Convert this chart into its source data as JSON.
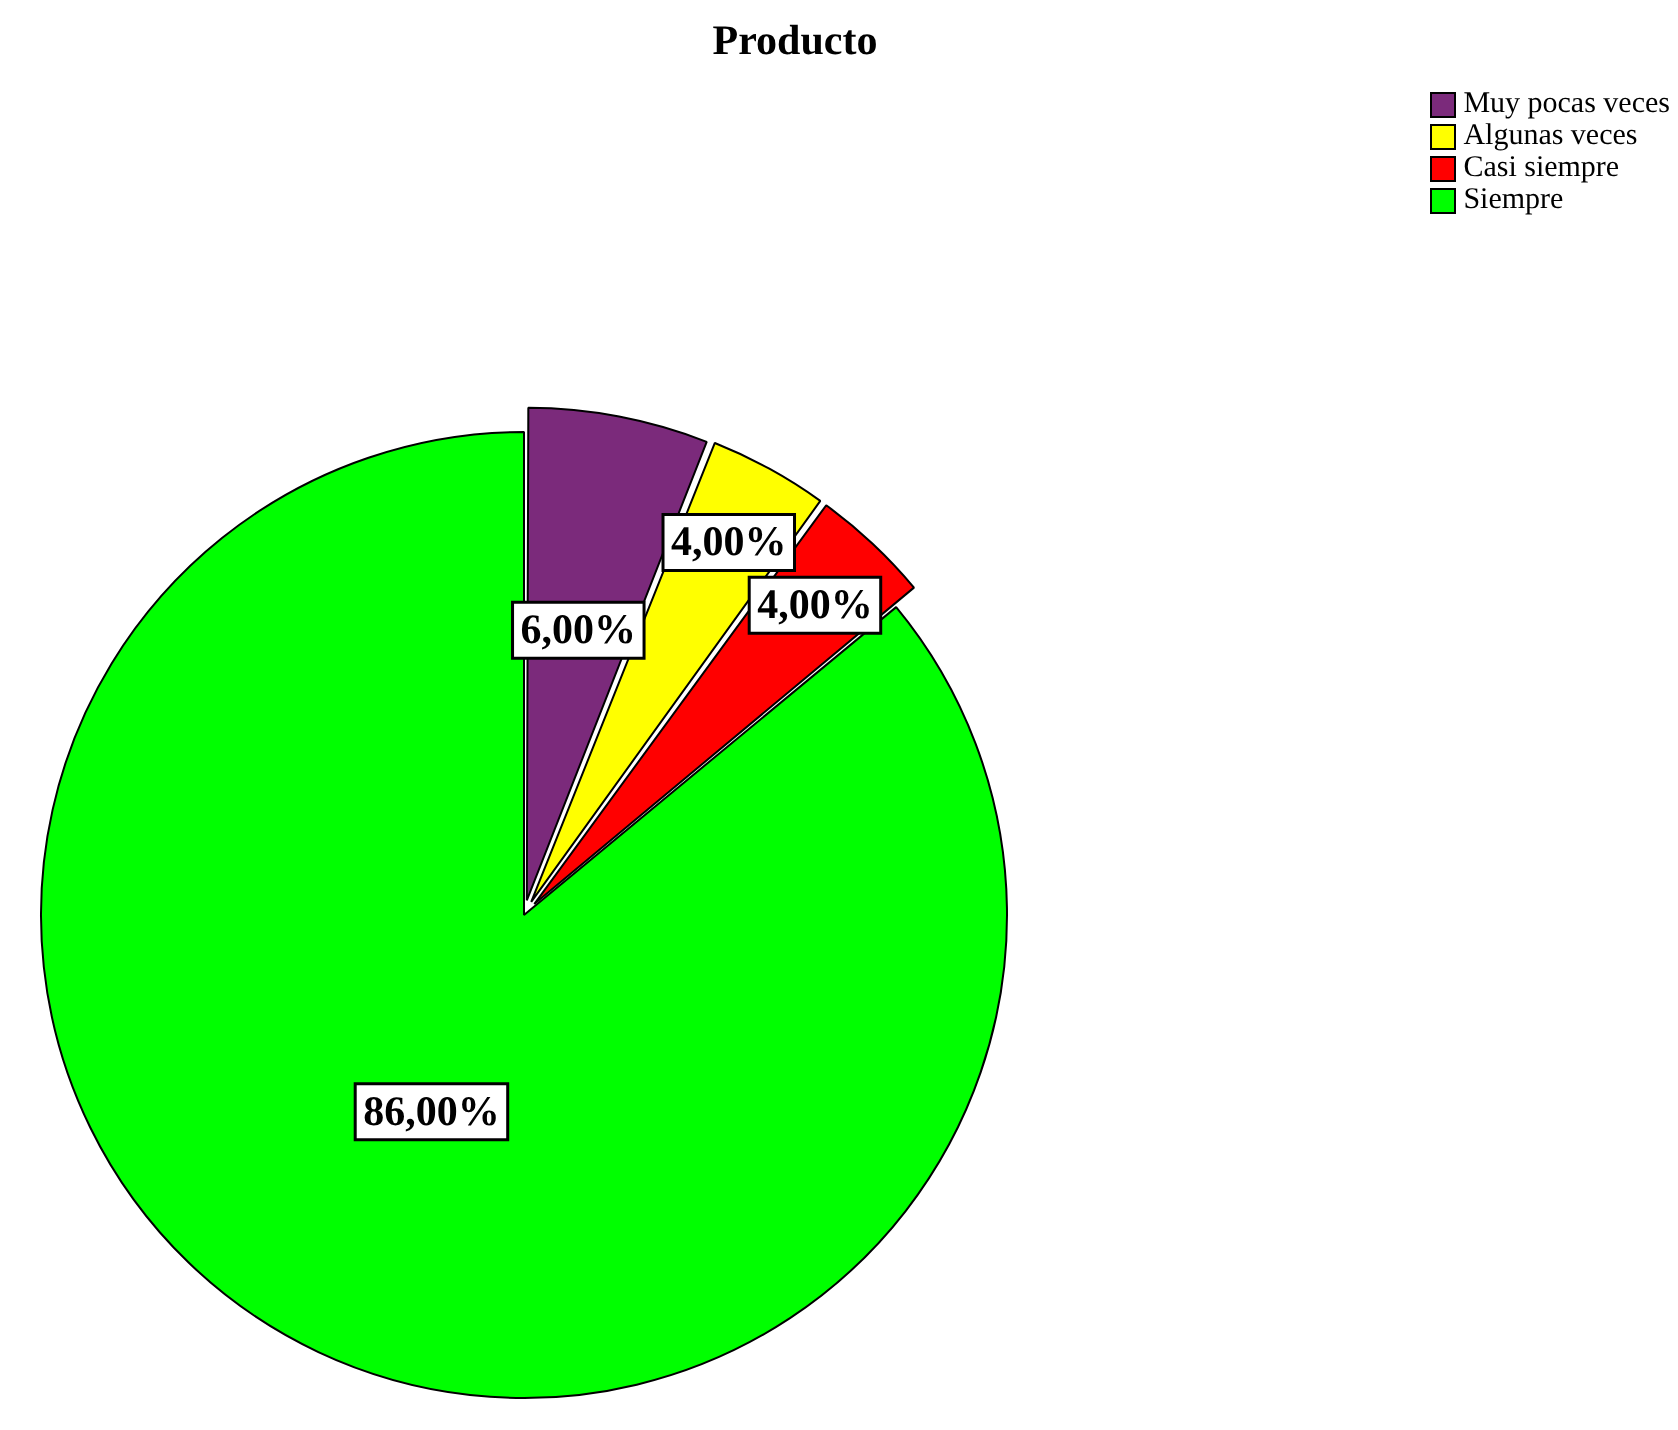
{
  "chart_data": {
    "type": "pie",
    "title": "Producto",
    "categories": [
      "Muy pocas veces",
      "Algunas veces",
      "Casi siempre",
      "Siempre"
    ],
    "values": [
      6,
      4,
      4,
      86
    ],
    "colors": [
      "#7b2a7b",
      "#ffff00",
      "#ff0000",
      "#00ff00"
    ],
    "value_labels": [
      "6,00%",
      "4,00%",
      "4,00%",
      "86,00%"
    ],
    "legend": "top right"
  }
}
